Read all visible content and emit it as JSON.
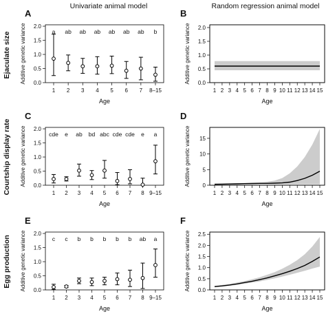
{
  "column_titles": [
    "Univariate animal model",
    "Random regression animal model"
  ],
  "row_titles": [
    "Ejaculate size",
    "Courtship display rate",
    "Egg production"
  ],
  "chart_data": [
    {
      "panel": "A",
      "type": "errorbar",
      "xlabel": "Age",
      "ylabel": "Additive genetic variance",
      "categories": [
        "1",
        "2",
        "3",
        "4",
        "5",
        "6",
        "7",
        "8–15"
      ],
      "estimates": [
        0.85,
        0.7,
        0.58,
        0.58,
        0.6,
        0.42,
        0.5,
        0.28
      ],
      "lower": [
        0.25,
        0.42,
        0.33,
        0.3,
        0.32,
        0.15,
        0.1,
        0.05
      ],
      "upper": [
        1.72,
        0.98,
        0.86,
        0.92,
        0.94,
        0.75,
        0.9,
        0.55
      ],
      "letters": [
        "a",
        "ab",
        "ab",
        "ab",
        "ab",
        "ab",
        "ab",
        "b"
      ],
      "yticks": [
        "0.0",
        "0.5",
        "1.0",
        "1.5",
        "2.0"
      ],
      "ylim": [
        0,
        2.05
      ]
    },
    {
      "panel": "B",
      "type": "line",
      "xlabel": "Age",
      "ylabel": "Additive genetic variance",
      "x": [
        1,
        2,
        3,
        4,
        5,
        6,
        7,
        8,
        9,
        10,
        11,
        12,
        13,
        14,
        15
      ],
      "mean": [
        0.6,
        0.6,
        0.6,
        0.6,
        0.6,
        0.6,
        0.6,
        0.6,
        0.6,
        0.6,
        0.6,
        0.6,
        0.6,
        0.6,
        0.6
      ],
      "ci_lower": [
        0.45,
        0.45,
        0.45,
        0.45,
        0.45,
        0.45,
        0.45,
        0.45,
        0.45,
        0.45,
        0.45,
        0.45,
        0.45,
        0.45,
        0.45
      ],
      "ci_upper": [
        0.78,
        0.78,
        0.78,
        0.78,
        0.78,
        0.78,
        0.78,
        0.78,
        0.78,
        0.78,
        0.78,
        0.78,
        0.78,
        0.78,
        0.78
      ],
      "xticks": [
        "1",
        "2",
        "3",
        "4",
        "5",
        "6",
        "7",
        "8",
        "9",
        "10",
        "11",
        "12",
        "13",
        "14",
        "15"
      ],
      "yticks": [
        "0.0",
        "0.5",
        "1.0",
        "1.5",
        "2.0"
      ],
      "ylim": [
        0,
        2.1
      ]
    },
    {
      "panel": "C",
      "type": "errorbar",
      "xlabel": "Age",
      "ylabel": "Additive genetic variance",
      "categories": [
        "1",
        "2",
        "3",
        "4",
        "5",
        "6",
        "7",
        "8",
        "9–15"
      ],
      "estimates": [
        0.22,
        0.22,
        0.52,
        0.36,
        0.52,
        0.15,
        0.22,
        0.02,
        0.85
      ],
      "lower": [
        0.08,
        0.15,
        0.32,
        0.2,
        0.25,
        0.02,
        0.05,
        0.0,
        0.4
      ],
      "upper": [
        0.38,
        0.3,
        0.75,
        0.52,
        0.88,
        0.45,
        0.55,
        0.25,
        1.42
      ],
      "letters": [
        "cde",
        "e",
        "ab",
        "bd",
        "abc",
        "cde",
        "cde",
        "e",
        "a"
      ],
      "yticks": [
        "0.0",
        "0.5",
        "1.0",
        "1.5",
        "2.0"
      ],
      "ylim": [
        0,
        2.05
      ]
    },
    {
      "panel": "D",
      "type": "line",
      "xlabel": "Age",
      "ylabel": "Additive genetic variance",
      "x": [
        1,
        2,
        3,
        4,
        5,
        6,
        7,
        8,
        9,
        10,
        11,
        12,
        13,
        14,
        15
      ],
      "mean": [
        0.3,
        0.35,
        0.4,
        0.45,
        0.5,
        0.55,
        0.6,
        0.6,
        0.65,
        0.75,
        1.0,
        1.5,
        2.2,
        3.2,
        4.5
      ],
      "ci_lower": [
        0.1,
        0.15,
        0.2,
        0.25,
        0.3,
        0.3,
        0.3,
        0.3,
        0.3,
        0.3,
        0.3,
        0.3,
        0.3,
        0.3,
        0.3
      ],
      "ci_upper": [
        0.5,
        0.55,
        0.6,
        0.65,
        0.7,
        0.8,
        0.9,
        1.1,
        1.5,
        2.3,
        3.8,
        6.0,
        9.0,
        13.0,
        18.0
      ],
      "xticks": [
        "1",
        "2",
        "3",
        "4",
        "5",
        "6",
        "7",
        "8",
        "9",
        "10",
        "11",
        "12",
        "13",
        "14",
        "15"
      ],
      "yticks": [
        "0",
        "5",
        "10",
        "15"
      ],
      "ylim": [
        0,
        18.5
      ]
    },
    {
      "panel": "E",
      "type": "errorbar",
      "xlabel": "Age",
      "ylabel": "Additive genetic variance",
      "categories": [
        "1",
        "2",
        "3",
        "4",
        "5",
        "6",
        "7",
        "8",
        "9–15"
      ],
      "estimates": [
        0.1,
        0.12,
        0.32,
        0.28,
        0.32,
        0.38,
        0.36,
        0.42,
        0.88
      ],
      "lower": [
        0.02,
        0.08,
        0.22,
        0.15,
        0.18,
        0.18,
        0.12,
        0.05,
        0.45
      ],
      "upper": [
        0.2,
        0.16,
        0.42,
        0.42,
        0.45,
        0.6,
        0.7,
        0.95,
        1.45
      ],
      "letters": [
        "c",
        "c",
        "b",
        "b",
        "b",
        "b",
        "b",
        "ab",
        "a"
      ],
      "yticks": [
        "0.0",
        "0.5",
        "1.0",
        "1.5",
        "2.0"
      ],
      "ylim": [
        0,
        2.05
      ]
    },
    {
      "panel": "F",
      "type": "line",
      "xlabel": "Age",
      "ylabel": "Additive genetic variance",
      "x": [
        1,
        2,
        3,
        4,
        5,
        6,
        7,
        8,
        9,
        10,
        11,
        12,
        13,
        14,
        15
      ],
      "mean": [
        0.15,
        0.18,
        0.22,
        0.27,
        0.33,
        0.39,
        0.46,
        0.54,
        0.63,
        0.73,
        0.84,
        0.96,
        1.1,
        1.28,
        1.48
      ],
      "ci_lower": [
        0.12,
        0.15,
        0.19,
        0.23,
        0.28,
        0.33,
        0.38,
        0.45,
        0.52,
        0.6,
        0.68,
        0.77,
        0.86,
        0.96,
        1.05
      ],
      "ci_upper": [
        0.18,
        0.22,
        0.27,
        0.33,
        0.4,
        0.48,
        0.57,
        0.68,
        0.8,
        0.95,
        1.13,
        1.34,
        1.6,
        1.95,
        2.38
      ],
      "xticks": [
        "1",
        "2",
        "3",
        "4",
        "5",
        "6",
        "7",
        "8",
        "9",
        "10",
        "11",
        "12",
        "13",
        "14",
        "15"
      ],
      "yticks": [
        "0.0",
        "0.5",
        "1.0",
        "1.5",
        "2.0",
        "2.5"
      ],
      "ylim": [
        0,
        2.6
      ]
    }
  ]
}
